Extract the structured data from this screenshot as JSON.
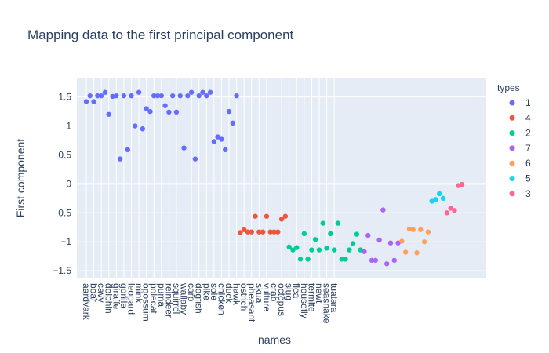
{
  "chart_data": {
    "type": "scatter",
    "title": "Mapping data to the first principal component",
    "xlabel": "names",
    "ylabel": "First component",
    "ylim": [
      -1.62,
      1.82
    ],
    "y_ticks": [
      -1.5,
      -1,
      -0.5,
      0,
      0.5,
      1,
      1.5
    ],
    "y_tick_labels": [
      "−1.5",
      "−1",
      "−0.5",
      "0",
      "0.5",
      "1",
      "1.5"
    ],
    "x_tick_labels": [
      "aardvark",
      "boar",
      "cavy",
      "dolphin",
      "giraffe",
      "gorilla",
      "leopard",
      "mink",
      "opossum",
      "polecat",
      "puma",
      "reindeer",
      "squirrel",
      "wallaby",
      "carp",
      "dogfish",
      "pike",
      "sole",
      "chicken",
      "duck",
      "hawk",
      "ostrich",
      "pheasant",
      "skua",
      "vulture",
      "crab",
      "octopus",
      "slug",
      "flea",
      "housefly",
      "termite",
      "newt",
      "seasnake",
      "tuatara"
    ],
    "legend": {
      "title": "types",
      "position": "right"
    },
    "grid": true,
    "series": [
      {
        "name": "1",
        "color": "#636efa",
        "y": [
          1.42,
          1.52,
          1.42,
          1.52,
          1.52,
          1.58,
          1.2,
          1.51,
          1.52,
          0.43,
          1.52,
          0.59,
          1.52,
          1.0,
          1.58,
          0.95,
          1.3,
          1.25,
          1.52,
          1.52,
          1.52,
          1.35,
          1.24,
          1.52,
          1.24,
          1.52,
          0.62,
          1.52,
          1.58,
          0.43,
          1.52,
          1.58,
          1.52,
          1.58,
          0.73,
          0.81,
          0.77,
          0.59,
          1.25,
          1.05,
          1.52
        ]
      },
      {
        "name": "4",
        "color": "#ef553b",
        "y": [
          -0.84,
          -0.79,
          -0.83,
          -0.83,
          -0.56,
          -0.83,
          -0.83,
          -0.56,
          -0.83,
          -0.83,
          -0.83,
          -0.61,
          -0.56
        ]
      },
      {
        "name": "2",
        "color": "#00cc96",
        "y": [
          -1.09,
          -1.14,
          -1.1,
          -1.3,
          -0.86,
          -1.3,
          -1.14,
          -0.96,
          -1.14,
          -0.68,
          -1.11,
          -0.86,
          -1.14,
          -0.68,
          -1.3,
          -1.3,
          -1.14,
          -1.03,
          -0.87,
          -1.14
        ]
      },
      {
        "name": "7",
        "color": "#ab63fa",
        "y": [
          -1.17,
          -0.89,
          -1.32,
          -1.32,
          -0.97,
          -0.45,
          -1.38,
          -1.02,
          -1.32,
          -1.02
        ]
      },
      {
        "name": "6",
        "color": "#ffa15a",
        "y": [
          -0.99,
          -1.18,
          -0.78,
          -0.79,
          -1.19,
          -0.79,
          -1.0,
          -0.83
        ]
      },
      {
        "name": "5",
        "color": "#19d3f3",
        "y": [
          -0.3,
          -0.27,
          -0.17,
          -0.25
        ]
      },
      {
        "name": "3",
        "color": "#ff6692",
        "y": [
          -0.5,
          -0.42,
          -0.46,
          -0.03,
          -0.01
        ]
      }
    ]
  }
}
